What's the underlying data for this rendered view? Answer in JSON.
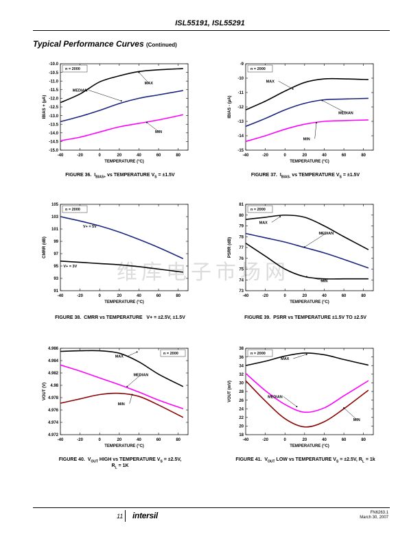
{
  "header": {
    "title": "ISL55191, ISL55291"
  },
  "section": {
    "title": "Typical Performance Curves",
    "continued": "(Continued)"
  },
  "watermark": "维库电子市场网",
  "colors": {
    "max": "#000000",
    "median": "#1a237e",
    "min": "#ff00ff",
    "min40": "#8b0000"
  },
  "charts": [
    {
      "id": "fig36",
      "caption_html": "FIGURE 36.&nbsp;&nbsp;I<sub>BIAS+</sub> vs TEMPERATURE V<sub>S</sub> = ±1.5V",
      "ylabel": "IBIAS + (µA)",
      "xlabel": "TEMPERATURE (°C)",
      "n_label": "n = 2000",
      "xticks": [
        -40,
        -20,
        0,
        20,
        40,
        60,
        80
      ],
      "yticks": [
        -10.0,
        -10.5,
        -11.0,
        -11.5,
        -12.0,
        -12.5,
        -13.0,
        -13.5,
        -14.0,
        -14.5,
        -15.0
      ],
      "ytick_labels": [
        "-10.0",
        "-10.5",
        "-11.0",
        "-11.5",
        "-12.0",
        "-12.5",
        "-13.0",
        "-13.5",
        "-14.0",
        "-14.5",
        "-15.0"
      ],
      "xlim": [
        -40,
        90
      ],
      "ylim": [
        -15.0,
        -10.0
      ],
      "series": [
        {
          "name": "MAX",
          "color": "max",
          "x": [
            -40,
            -20,
            0,
            20,
            40,
            60,
            85
          ],
          "y": [
            -12.25,
            -11.75,
            -11.05,
            -10.7,
            -10.45,
            -10.35,
            -10.28
          ]
        },
        {
          "name": "MEDIAN",
          "color": "median",
          "x": [
            -40,
            -20,
            0,
            20,
            40,
            60,
            85
          ],
          "y": [
            -13.35,
            -13.05,
            -12.7,
            -12.3,
            -12.0,
            -11.8,
            -11.55
          ]
        },
        {
          "name": "MIN",
          "color": "min",
          "x": [
            -40,
            -20,
            0,
            20,
            40,
            60,
            85
          ],
          "y": [
            -14.45,
            -14.25,
            -13.95,
            -13.65,
            -13.45,
            -13.25,
            -12.95
          ]
        }
      ],
      "labels": [
        {
          "text": "MAX",
          "lx": 50,
          "ly": -11.2,
          "ax": 40,
          "ay": -10.5
        },
        {
          "text": "MEDIAN",
          "lx": -20,
          "ly": -11.6,
          "ax": 22,
          "ay": -12.15
        },
        {
          "text": "MIN",
          "lx": 60,
          "ly": -14.0,
          "ax": 48,
          "ay": -13.4
        }
      ]
    },
    {
      "id": "fig37",
      "caption_html": "FIGURE 37.&nbsp;&nbsp;I<sub>BIAS-</sub> vs TEMPERATURE V<sub>S</sub> = ±1.5V",
      "ylabel": "IBIAS - (µA)",
      "xlabel": "TEMPERATURE (°C)",
      "n_label": "n = 2000",
      "xticks": [
        -40,
        -20,
        0,
        20,
        40,
        60,
        80
      ],
      "yticks": [
        -9,
        -10,
        -11,
        -12,
        -13,
        -14,
        -15
      ],
      "ytick_labels": [
        "-9",
        "-10",
        "-11",
        "-12",
        "-13",
        "-14",
        "-15"
      ],
      "xlim": [
        -40,
        90
      ],
      "ylim": [
        -15,
        -9
      ],
      "series": [
        {
          "name": "MAX",
          "color": "max",
          "x": [
            -40,
            -20,
            0,
            20,
            40,
            60,
            85
          ],
          "y": [
            -12.2,
            -11.6,
            -10.9,
            -10.3,
            -10.05,
            -10.05,
            -10.1
          ]
        },
        {
          "name": "MEDIAN",
          "color": "median",
          "x": [
            -40,
            -20,
            0,
            20,
            40,
            60,
            85
          ],
          "y": [
            -13.35,
            -12.8,
            -12.2,
            -11.75,
            -11.5,
            -11.45,
            -11.4
          ]
        },
        {
          "name": "MIN",
          "color": "min",
          "x": [
            -40,
            -20,
            0,
            20,
            40,
            60,
            85
          ],
          "y": [
            -14.4,
            -14.0,
            -13.55,
            -13.2,
            -13.0,
            -12.95,
            -12.9
          ]
        }
      ],
      "labels": [
        {
          "text": "MAX",
          "lx": -15,
          "ly": -10.3,
          "ax": 8,
          "ay": -10.75
        },
        {
          "text": "MEDIAN",
          "lx": 62,
          "ly": -12.5,
          "ax": 38,
          "ay": -11.55
        },
        {
          "text": "MIN",
          "lx": 22,
          "ly": -14.3,
          "ax": 32,
          "ay": -13.1
        }
      ]
    },
    {
      "id": "fig38",
      "caption_html": "FIGURE 38.&nbsp;&nbsp;CMRR vs TEMPERATURE&nbsp;&nbsp;&nbsp;V+ = ±2.5V, ±1.5V",
      "ylabel": "CMRR (dB)",
      "xlabel": "TEMPERATURE (°C)",
      "n_label": "n = 2000",
      "xticks": [
        -40,
        -20,
        0,
        20,
        40,
        60,
        80
      ],
      "yticks": [
        105,
        103,
        101,
        99,
        97,
        95,
        93,
        91
      ],
      "ytick_labels": [
        "105",
        "103",
        "101",
        "99",
        "97",
        "95",
        "93",
        "91"
      ],
      "xlim": [
        -40,
        90
      ],
      "ylim": [
        91,
        105
      ],
      "series": [
        {
          "name": "V+ = 5V",
          "color": "median",
          "x": [
            -40,
            -20,
            0,
            20,
            40,
            60,
            85
          ],
          "y": [
            103.0,
            102.3,
            101.5,
            100.5,
            99.3,
            98.0,
            96.2
          ]
        },
        {
          "name": "V+ = 3V",
          "color": "max",
          "x": [
            -40,
            -20,
            0,
            20,
            40,
            60,
            85
          ],
          "y": [
            95.8,
            95.6,
            95.4,
            95.2,
            94.9,
            94.5,
            94.0
          ]
        }
      ],
      "labels": [
        {
          "text": "V+ = 5V",
          "lx": -10,
          "ly": 101.2,
          "ax": null,
          "ay": null
        },
        {
          "text": "V+ = 3V",
          "lx": -30,
          "ly": 94.8,
          "ax": null,
          "ay": null
        }
      ]
    },
    {
      "id": "fig39",
      "caption_html": "FIGURE 39.&nbsp;&nbsp;PSRR vs TEMPERATURE ±1.5V TO ±2.5V",
      "ylabel": "PSRR (dB)",
      "xlabel": "TEMPERATURE (°C)",
      "n_label": "n = 2000",
      "xticks": [
        -40,
        -20,
        0,
        20,
        40,
        60,
        80
      ],
      "yticks": [
        81,
        80,
        79,
        78,
        77,
        76,
        75,
        74,
        73
      ],
      "ytick_labels": [
        "81",
        "80",
        "79",
        "78",
        "77",
        "76",
        "75",
        "74",
        "73"
      ],
      "xlim": [
        -40,
        90
      ],
      "ylim": [
        73,
        81
      ],
      "series": [
        {
          "name": "MAX",
          "color": "max",
          "x": [
            -40,
            -20,
            0,
            20,
            40,
            60,
            85
          ],
          "y": [
            79.6,
            79.8,
            80.0,
            79.8,
            79.0,
            78.0,
            76.8
          ]
        },
        {
          "name": "MEDIAN",
          "color": "median",
          "x": [
            -40,
            -20,
            0,
            20,
            40,
            60,
            85
          ],
          "y": [
            78.3,
            77.9,
            77.5,
            77.0,
            76.5,
            75.9,
            75.1
          ]
        },
        {
          "name": "MIN",
          "color": "max",
          "x": [
            -40,
            -20,
            0,
            20,
            40,
            60,
            85
          ],
          "y": [
            77.4,
            76.2,
            75.0,
            74.3,
            74.1,
            74.1,
            74.1
          ]
        }
      ],
      "labels": [
        {
          "text": "MAX",
          "lx": -22,
          "ly": 79.2,
          "ax": -5,
          "ay": 79.85
        },
        {
          "text": "MEDIAN",
          "lx": 42,
          "ly": 78.2,
          "ax": 20,
          "ay": 77.05
        },
        {
          "text": "MIN",
          "lx": 40,
          "ly": 73.8,
          "ax": 22,
          "ay": 74.3
        }
      ]
    },
    {
      "id": "fig40",
      "caption_html": "FIGURE 40.&nbsp;&nbsp;V<sub>OUT</sub> HIGH vs TEMPERATURE V<sub>S</sub> = ±2.5V,<br>R<sub>L</sub> = 1K",
      "ylabel": "VOUT (V)",
      "xlabel": "TEMPERATURE (°C)",
      "n_label": "n = 2000",
      "xticks": [
        -40,
        -20,
        0,
        20,
        40,
        60,
        80
      ],
      "yticks": [
        4.986,
        4.984,
        4.982,
        4.98,
        4.978,
        4.976,
        4.974,
        4.972
      ],
      "ytick_labels": [
        "4.986",
        "4.984",
        "4.982",
        "4.98",
        "4.978",
        "4.976",
        "4.974",
        "4.972"
      ],
      "xlim": [
        -40,
        90
      ],
      "ylim": [
        4.972,
        4.986
      ],
      "series": [
        {
          "name": "MAX",
          "color": "max",
          "x": [
            -40,
            -20,
            0,
            20,
            40,
            60,
            85
          ],
          "y": [
            4.9855,
            4.9856,
            4.9856,
            4.9852,
            4.9838,
            4.9818,
            4.9798
          ]
        },
        {
          "name": "MEDIAN",
          "color": "min",
          "x": [
            -40,
            -20,
            0,
            20,
            40,
            60,
            85
          ],
          "y": [
            4.9833,
            4.9823,
            4.9812,
            4.9801,
            4.9789,
            4.9776,
            4.9762
          ]
        },
        {
          "name": "MIN",
          "color": "min40",
          "x": [
            -40,
            -20,
            0,
            20,
            40,
            60,
            85
          ],
          "y": [
            4.9771,
            4.9778,
            4.9785,
            4.9787,
            4.9782,
            4.9768,
            4.9748
          ]
        }
      ],
      "labels": [
        {
          "text": "MAX",
          "lx": 20,
          "ly": 4.9845,
          "ax": 38,
          "ay": 4.9854
        },
        {
          "text": "MEDIAN",
          "lx": 42,
          "ly": 4.9815,
          "ax": 28,
          "ay": 4.9798
        },
        {
          "text": "MIN",
          "lx": 22,
          "ly": 4.9768,
          "ax": 33,
          "ay": 4.9785
        }
      ]
    },
    {
      "id": "fig41",
      "caption_html": "FIGURE 41.&nbsp;&nbsp;V<sub>OUT</sub> LOW vs TEMPERATURE V<sub>S</sub> = ±2.5V, R<sub>L</sub> = 1k",
      "ylabel": "VOUT (mV)",
      "xlabel": "TEMPERATURE (°C)",
      "n_label": "n = 2000",
      "xticks": [
        -40,
        -20,
        0,
        20,
        40,
        60,
        80
      ],
      "yticks": [
        38,
        36,
        34,
        32,
        30,
        28,
        26,
        24,
        22,
        20,
        18
      ],
      "ytick_labels": [
        "38",
        "36",
        "34",
        "32",
        "30",
        "28",
        "26",
        "24",
        "22",
        "20",
        "18"
      ],
      "xlim": [
        -40,
        90
      ],
      "ylim": [
        18,
        38
      ],
      "series": [
        {
          "name": "MAX",
          "color": "max",
          "x": [
            -40,
            -20,
            0,
            20,
            40,
            60,
            85
          ],
          "y": [
            34.0,
            35.0,
            36.2,
            36.9,
            36.5,
            35.4,
            34.1
          ]
        },
        {
          "name": "MEDIAN",
          "color": "min",
          "x": [
            -40,
            -20,
            0,
            20,
            40,
            60,
            85
          ],
          "y": [
            32.2,
            28.2,
            25.0,
            23.2,
            24.2,
            27.0,
            30.5
          ]
        },
        {
          "name": "MIN",
          "color": "min40",
          "x": [
            -40,
            -20,
            0,
            20,
            40,
            60,
            85
          ],
          "y": [
            30.5,
            25.8,
            21.7,
            19.8,
            21.0,
            24.0,
            28.3
          ]
        }
      ],
      "labels": [
        {
          "text": "MAX",
          "lx": 0,
          "ly": 35.3,
          "ax": 22,
          "ay": 36.6
        },
        {
          "text": "MEDIAN",
          "lx": -10,
          "ly": 26.5,
          "ax": 12,
          "ay": 24.5
        },
        {
          "text": "MIN",
          "lx": 73,
          "ly": 21.2,
          "ax": 60,
          "ay": 24.2
        }
      ]
    }
  ],
  "footer": {
    "page_number": "11",
    "logo": "intersil",
    "doc_id": "FN6263.1",
    "date": "March 30, 2007"
  },
  "chart_data": [
    {
      "type": "line",
      "title": "FIGURE 36. IBIAS+ vs TEMPERATURE VS = ±1.5V",
      "xlabel": "TEMPERATURE (°C)",
      "ylabel": "IBIAS + (µA)",
      "ylim": [
        -15.0,
        -10.0
      ],
      "x": [
        -40,
        -20,
        0,
        20,
        40,
        60,
        85
      ],
      "series": [
        {
          "name": "MAX",
          "values": [
            -12.25,
            -11.75,
            -11.05,
            -10.7,
            -10.45,
            -10.35,
            -10.28
          ]
        },
        {
          "name": "MEDIAN",
          "values": [
            -13.35,
            -13.05,
            -12.7,
            -12.3,
            -12.0,
            -11.8,
            -11.55
          ]
        },
        {
          "name": "MIN",
          "values": [
            -14.45,
            -14.25,
            -13.95,
            -13.65,
            -13.45,
            -13.25,
            -12.95
          ]
        }
      ]
    },
    {
      "type": "line",
      "title": "FIGURE 37. IBIAS- vs TEMPERATURE VS = ±1.5V",
      "xlabel": "TEMPERATURE (°C)",
      "ylabel": "IBIAS - (µA)",
      "ylim": [
        -15,
        -9
      ],
      "x": [
        -40,
        -20,
        0,
        20,
        40,
        60,
        85
      ],
      "series": [
        {
          "name": "MAX",
          "values": [
            -12.2,
            -11.6,
            -10.9,
            -10.3,
            -10.05,
            -10.05,
            -10.1
          ]
        },
        {
          "name": "MEDIAN",
          "values": [
            -13.35,
            -12.8,
            -12.2,
            -11.75,
            -11.5,
            -11.45,
            -11.4
          ]
        },
        {
          "name": "MIN",
          "values": [
            -14.4,
            -14.0,
            -13.55,
            -13.2,
            -13.0,
            -12.95,
            -12.9
          ]
        }
      ]
    },
    {
      "type": "line",
      "title": "FIGURE 38. CMRR vs TEMPERATURE V+ = ±2.5V, ±1.5V",
      "xlabel": "TEMPERATURE (°C)",
      "ylabel": "CMRR (dB)",
      "ylim": [
        91,
        105
      ],
      "x": [
        -40,
        -20,
        0,
        20,
        40,
        60,
        85
      ],
      "series": [
        {
          "name": "V+ = 5V",
          "values": [
            103.0,
            102.3,
            101.5,
            100.5,
            99.3,
            98.0,
            96.2
          ]
        },
        {
          "name": "V+ = 3V",
          "values": [
            95.8,
            95.6,
            95.4,
            95.2,
            94.9,
            94.5,
            94.0
          ]
        }
      ]
    },
    {
      "type": "line",
      "title": "FIGURE 39. PSRR vs TEMPERATURE ±1.5V TO ±2.5V",
      "xlabel": "TEMPERATURE (°C)",
      "ylabel": "PSRR (dB)",
      "ylim": [
        73,
        81
      ],
      "x": [
        -40,
        -20,
        0,
        20,
        40,
        60,
        85
      ],
      "series": [
        {
          "name": "MAX",
          "values": [
            79.6,
            79.8,
            80.0,
            79.8,
            79.0,
            78.0,
            76.8
          ]
        },
        {
          "name": "MEDIAN",
          "values": [
            78.3,
            77.9,
            77.5,
            77.0,
            76.5,
            75.9,
            75.1
          ]
        },
        {
          "name": "MIN",
          "values": [
            77.4,
            76.2,
            75.0,
            74.3,
            74.1,
            74.1,
            74.1
          ]
        }
      ]
    },
    {
      "type": "line",
      "title": "FIGURE 40. VOUT HIGH vs TEMPERATURE VS = ±2.5V, RL = 1K",
      "xlabel": "TEMPERATURE (°C)",
      "ylabel": "VOUT (V)",
      "ylim": [
        4.972,
        4.986
      ],
      "x": [
        -40,
        -20,
        0,
        20,
        40,
        60,
        85
      ],
      "series": [
        {
          "name": "MAX",
          "values": [
            4.9855,
            4.9856,
            4.9856,
            4.9852,
            4.9838,
            4.9818,
            4.9798
          ]
        },
        {
          "name": "MEDIAN",
          "values": [
            4.9833,
            4.9823,
            4.9812,
            4.9801,
            4.9789,
            4.9776,
            4.9762
          ]
        },
        {
          "name": "MIN",
          "values": [
            4.9771,
            4.9778,
            4.9785,
            4.9787,
            4.9782,
            4.9768,
            4.9748
          ]
        }
      ]
    },
    {
      "type": "line",
      "title": "FIGURE 41. VOUT LOW vs TEMPERATURE VS = ±2.5V, RL = 1k",
      "xlabel": "TEMPERATURE (°C)",
      "ylabel": "VOUT (mV)",
      "ylim": [
        18,
        38
      ],
      "x": [
        -40,
        -20,
        0,
        20,
        40,
        60,
        85
      ],
      "series": [
        {
          "name": "MAX",
          "values": [
            34.0,
            35.0,
            36.2,
            36.9,
            36.5,
            35.4,
            34.1
          ]
        },
        {
          "name": "MEDIAN",
          "values": [
            32.2,
            28.2,
            25.0,
            23.2,
            24.2,
            27.0,
            30.5
          ]
        },
        {
          "name": "MIN",
          "values": [
            30.5,
            25.8,
            21.7,
            19.8,
            21.0,
            24.0,
            28.3
          ]
        }
      ]
    }
  ]
}
